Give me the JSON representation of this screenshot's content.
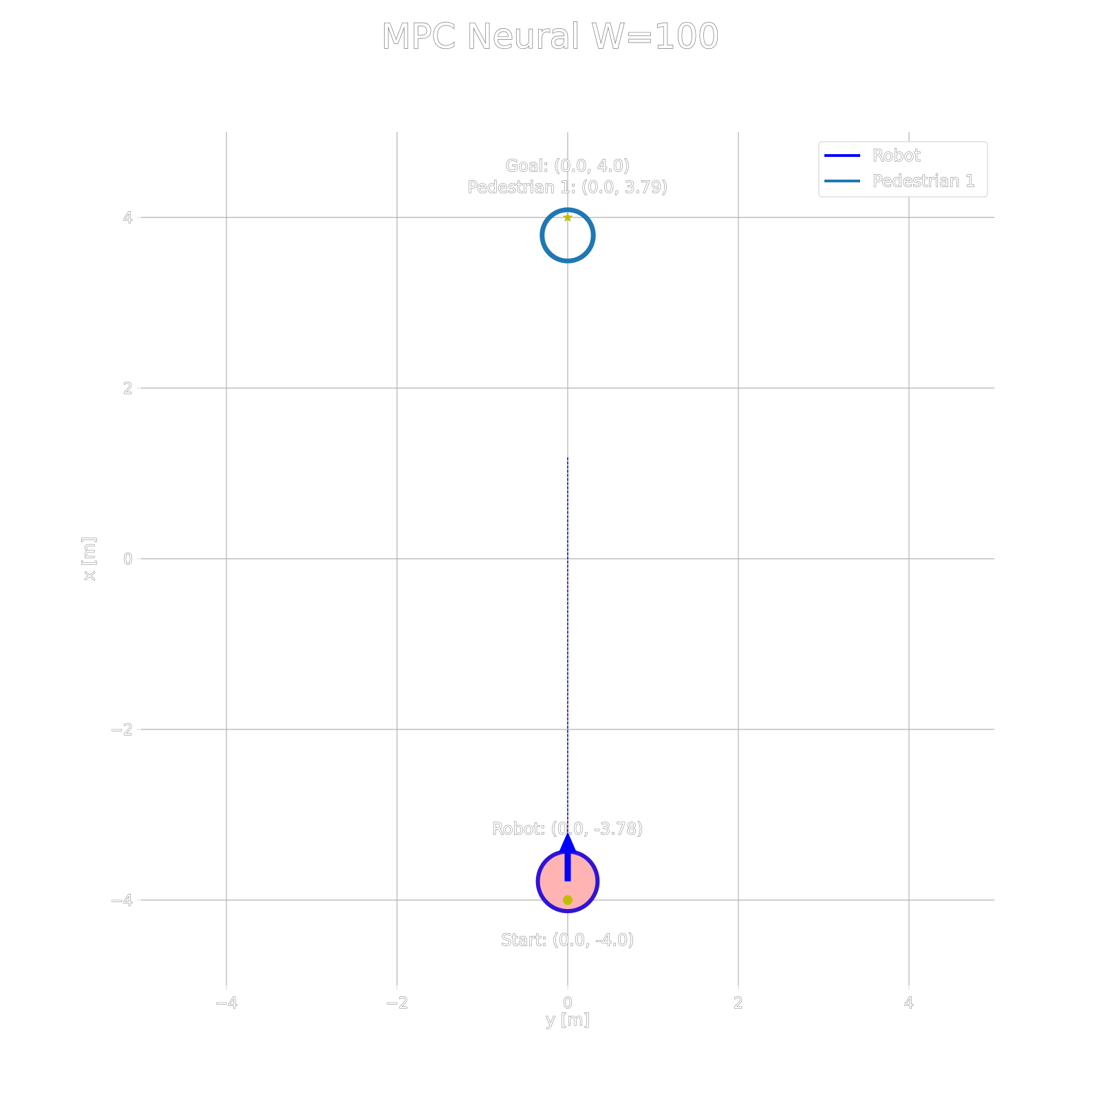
{
  "chart_data": {
    "type": "scatter",
    "title": "MPC Neural W=100",
    "xlabel": "y [m]",
    "ylabel": "x [m]",
    "xlim": [
      -5,
      5
    ],
    "ylim": [
      -5,
      5
    ],
    "xticks": [
      -4,
      -2,
      0,
      2,
      4
    ],
    "yticks": [
      -4,
      -2,
      0,
      2,
      4
    ],
    "xtick_labels": [
      "−4",
      "−2",
      "0",
      "2",
      "4"
    ],
    "ytick_labels": [
      "−4",
      "−2",
      "0",
      "2",
      "4"
    ],
    "grid": true,
    "legend": {
      "position": "top-right",
      "entries": [
        {
          "label": "Robot",
          "color": "#0000ff"
        },
        {
          "label": "Pedestrian 1",
          "color": "#1f77b4"
        }
      ]
    },
    "robot": {
      "y": 0.0,
      "x": -3.78,
      "radius": 0.35,
      "fill": "#ffb3b3",
      "edge": "#2f14d8"
    },
    "pedestrian": {
      "y": 0.0,
      "x": 3.79,
      "radius": 0.3,
      "edge": "#1f77b4"
    },
    "start": {
      "y": 0.0,
      "x": -4.0,
      "color": "#bfbf00"
    },
    "goal": {
      "y": 0.0,
      "x": 4.0,
      "color": "#bfbf00"
    },
    "planned_path": {
      "y": [
        0.0,
        0.0
      ],
      "x": [
        -3.78,
        1.2
      ],
      "color": "#0000ff"
    },
    "heading": {
      "y": 0.0,
      "x_from": -3.78,
      "x_to": -3.2,
      "color": "#0000ff"
    },
    "annotations": [
      {
        "id": "goal",
        "text": "Goal: (0.0, 4.0)",
        "y": 0.0,
        "x": 4.0
      },
      {
        "id": "pedestrian",
        "text": "Pedestrian 1: (0.0, 3.79)",
        "y": 0.0,
        "x": 3.79
      },
      {
        "id": "robot",
        "text": "Robot: (0.0, -3.78)",
        "y": 0.0,
        "x": -3.78
      },
      {
        "id": "start",
        "text": "Start: (0.0, -4.0)",
        "y": 0.0,
        "x": -4.0
      }
    ]
  }
}
